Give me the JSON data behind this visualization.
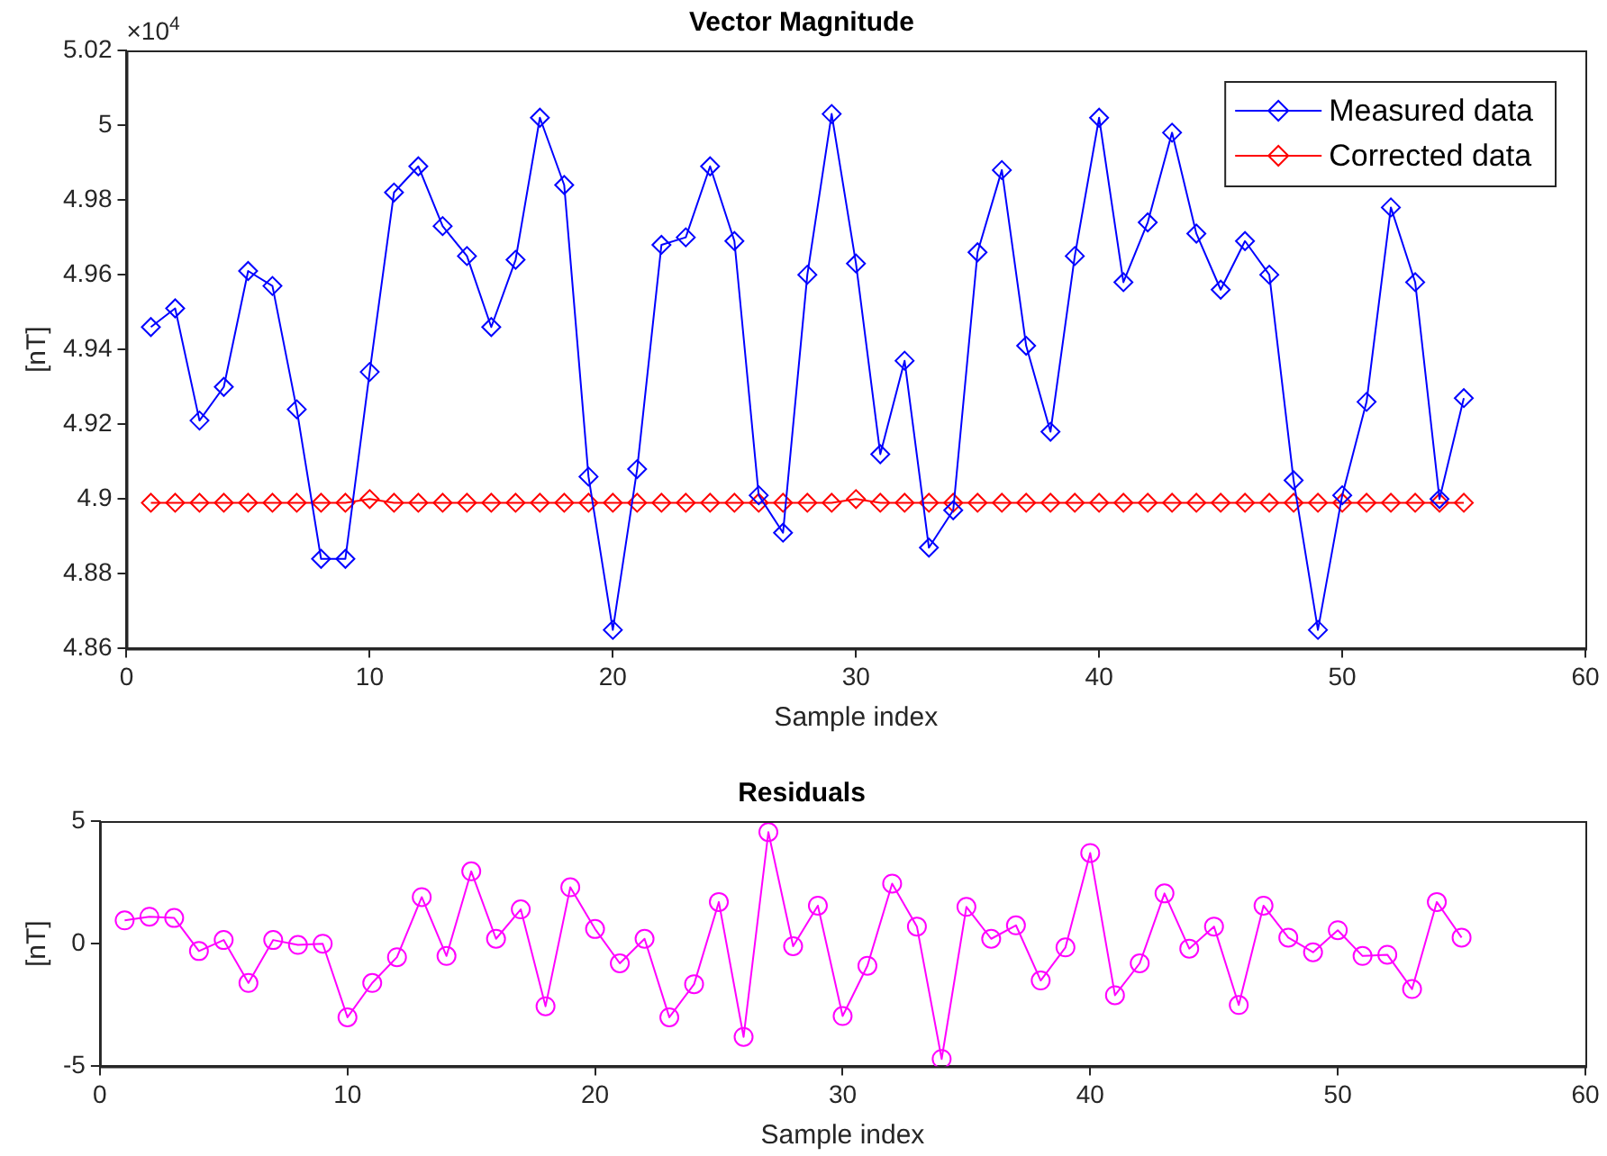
{
  "chart_data": [
    {
      "type": "line",
      "title": "Vector Magnitude",
      "xlabel": "Sample index",
      "ylabel": "[nT]",
      "annotations": [
        "×10$^{4}$"
      ],
      "x": [
        1,
        2,
        3,
        4,
        5,
        6,
        7,
        8,
        9,
        10,
        11,
        12,
        13,
        14,
        15,
        16,
        17,
        18,
        19,
        20,
        21,
        22,
        23,
        24,
        25,
        26,
        27,
        28,
        29,
        30,
        31,
        32,
        33,
        34,
        35,
        36,
        37,
        38,
        39,
        40,
        41,
        42,
        43,
        44,
        45,
        46,
        47,
        48,
        49,
        50,
        51,
        52,
        53,
        54,
        55
      ],
      "series": [
        {
          "name": "Measured data",
          "color": "#0000ff",
          "values": [
            4.946,
            4.951,
            4.921,
            4.93,
            4.961,
            4.957,
            4.924,
            4.884,
            4.884,
            4.934,
            4.982,
            4.989,
            4.973,
            4.965,
            4.946,
            4.964,
            5.002,
            4.984,
            4.906,
            4.865,
            4.908,
            4.968,
            4.97,
            4.989,
            4.969,
            4.901,
            4.891,
            4.96,
            5.003,
            4.963,
            4.912,
            4.937,
            4.887,
            4.897,
            4.966,
            4.988,
            4.941,
            4.918,
            4.965,
            5.002,
            4.958,
            4.974,
            4.998,
            4.971,
            4.956,
            4.969,
            4.96,
            4.905,
            4.865,
            4.901,
            4.926,
            4.978,
            4.958,
            4.9,
            4.927
          ]
        },
        {
          "name": "Corrected data",
          "color": "#ff0000",
          "values": [
            4.899,
            4.899,
            4.899,
            4.899,
            4.899,
            4.899,
            4.899,
            4.899,
            4.899,
            4.9,
            4.899,
            4.899,
            4.899,
            4.899,
            4.899,
            4.899,
            4.899,
            4.899,
            4.899,
            4.899,
            4.899,
            4.899,
            4.899,
            4.899,
            4.899,
            4.899,
            4.899,
            4.899,
            4.899,
            4.9,
            4.899,
            4.899,
            4.899,
            4.899,
            4.899,
            4.899,
            4.899,
            4.899,
            4.899,
            4.899,
            4.899,
            4.899,
            4.899,
            4.899,
            4.899,
            4.899,
            4.899,
            4.899,
            4.899,
            4.899,
            4.899,
            4.899,
            4.899,
            4.899,
            4.899
          ]
        }
      ],
      "xlim": [
        0,
        60
      ],
      "xticks": [
        0,
        10,
        20,
        30,
        40,
        50,
        60
      ],
      "ylim": [
        4.86,
        5.02
      ],
      "yticks": [
        4.86,
        4.88,
        4.9,
        4.92,
        4.94,
        4.96,
        4.98,
        5,
        5.02
      ],
      "grid": false,
      "legend": "top right",
      "marker": "diamond"
    },
    {
      "type": "line",
      "title": "Residuals",
      "xlabel": "Sample index",
      "ylabel": "[nT]",
      "x": [
        1,
        2,
        3,
        4,
        5,
        6,
        7,
        8,
        9,
        10,
        11,
        12,
        13,
        14,
        15,
        16,
        17,
        18,
        19,
        20,
        21,
        22,
        23,
        24,
        25,
        26,
        27,
        28,
        29,
        30,
        31,
        32,
        33,
        34,
        35,
        36,
        37,
        38,
        39,
        40,
        41,
        42,
        43,
        44,
        45,
        46,
        47,
        48,
        49,
        50,
        51,
        52,
        53,
        54,
        55
      ],
      "series": [
        {
          "color": "#ff00ff",
          "values": [
            0.95,
            1.1,
            1.05,
            -0.3,
            0.15,
            -1.6,
            0.15,
            -0.05,
            0,
            -3.0,
            -1.6,
            -0.55,
            1.9,
            -0.5,
            2.95,
            0.2,
            1.4,
            -2.55,
            2.3,
            0.6,
            -0.8,
            0.2,
            -3.0,
            -1.65,
            1.7,
            -3.8,
            4.55,
            -0.1,
            1.55,
            -2.95,
            -0.9,
            2.45,
            0.7,
            -4.7,
            1.5,
            0.2,
            0.75,
            -1.5,
            -0.15,
            3.7,
            -2.1,
            -0.8,
            2.05,
            -0.2,
            0.7,
            -2.5,
            1.55,
            0.25,
            -0.35,
            0.55,
            -0.5,
            -0.45,
            -1.85,
            1.7,
            0.25
          ]
        }
      ],
      "xlim": [
        0,
        60
      ],
      "xticks": [
        0,
        10,
        20,
        30,
        40,
        50,
        60
      ],
      "ylim": [
        -5,
        5
      ],
      "yticks": [
        -5,
        0,
        5
      ],
      "grid": false,
      "legend": false,
      "marker": "circle"
    }
  ]
}
